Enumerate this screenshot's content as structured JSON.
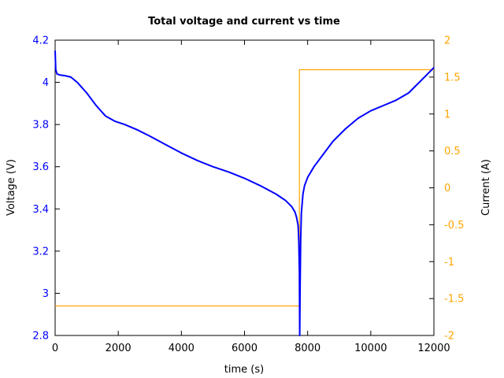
{
  "chart_data": {
    "type": "line",
    "title": "Total voltage and current vs time",
    "xlabel": "time (s)",
    "ylabel_left": "Voltage (V)",
    "ylabel_right": "Current (A)",
    "xlim": [
      0,
      12000
    ],
    "ylim_left": [
      2.8,
      4.2
    ],
    "ylim_right": [
      -2,
      2
    ],
    "grid": false,
    "x_ticks": [
      "0",
      "2000",
      "4000",
      "6000",
      "8000",
      "10000",
      "12000"
    ],
    "y_left_ticks": [
      "2.8",
      "3",
      "3.2",
      "3.4",
      "3.6",
      "3.8",
      "4",
      "4.2"
    ],
    "y_right_ticks": [
      "-2",
      "-1.5",
      "-1",
      "-0.5",
      "0",
      "0.5",
      "1",
      "1.5",
      "2"
    ],
    "colors": {
      "voltage": "#0000ff",
      "current": "#ffa500",
      "left_axis": "#0000ff",
      "right_axis": "#ffa500"
    },
    "series": [
      {
        "axis": "left",
        "x": [
          0,
          20,
          60,
          150,
          300,
          500,
          700,
          1000,
          1300,
          1600,
          1900,
          2200,
          2600,
          3000,
          3500,
          4000,
          4500,
          5000,
          5500,
          6000,
          6500,
          7000,
          7300,
          7500,
          7600,
          7650,
          7700,
          7720,
          7740,
          7750,
          7760,
          7780,
          7800,
          7850,
          7900,
          8000,
          8200,
          8500,
          8800,
          9200,
          9600,
          10000,
          10400,
          10800,
          11200,
          11600,
          12000
        ],
        "y": [
          4.15,
          4.06,
          4.04,
          4.035,
          4.032,
          4.025,
          4.0,
          3.95,
          3.89,
          3.84,
          3.815,
          3.8,
          3.775,
          3.745,
          3.705,
          3.665,
          3.63,
          3.6,
          3.575,
          3.545,
          3.51,
          3.47,
          3.44,
          3.41,
          3.385,
          3.36,
          3.32,
          3.25,
          3.1,
          2.8,
          3.0,
          3.25,
          3.38,
          3.47,
          3.51,
          3.55,
          3.6,
          3.66,
          3.72,
          3.78,
          3.83,
          3.865,
          3.89,
          3.915,
          3.95,
          4.01,
          4.07
        ]
      },
      {
        "axis": "right",
        "x": [
          0,
          7740,
          7740,
          12000
        ],
        "y": [
          -1.6,
          -1.6,
          1.6,
          1.6
        ]
      }
    ]
  }
}
